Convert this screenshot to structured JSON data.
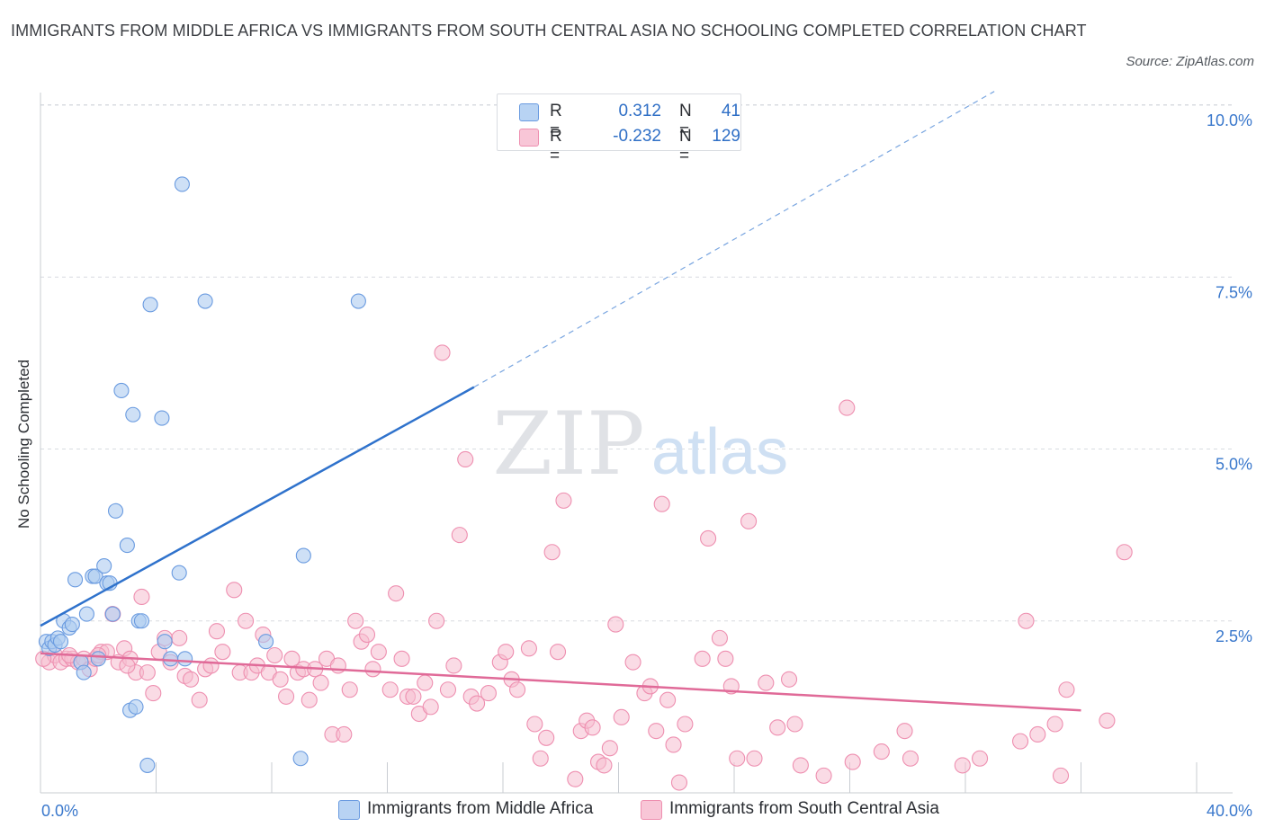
{
  "title": "IMMIGRANTS FROM MIDDLE AFRICA VS IMMIGRANTS FROM SOUTH CENTRAL ASIA NO SCHOOLING COMPLETED CORRELATION CHART",
  "source": "Source: ZipAtlas.com",
  "watermark": {
    "zip": "ZIP",
    "atlas": "atlas"
  },
  "legend": {
    "rows": [
      {
        "r_label": "R =",
        "r_value": "0.312",
        "n_label": "N =",
        "n_value": "41"
      },
      {
        "r_label": "R =",
        "r_value": "-0.232",
        "n_label": "N =",
        "n_value": "129"
      }
    ]
  },
  "colors": {
    "blue_fill": "#aecbf0",
    "blue_stroke": "#6a9be0",
    "blue_line": "#2f72cc",
    "pink_fill": "#f6bdd0",
    "pink_stroke": "#ee8fb0",
    "pink_line": "#e06a98",
    "axis_text": "#3a78cc",
    "grid": "#d8dbe0"
  },
  "chart_data": {
    "type": "scatter",
    "title": "IMMIGRANTS FROM MIDDLE AFRICA VS IMMIGRANTS FROM SOUTH CENTRAL ASIA NO SCHOOLING COMPLETED CORRELATION CHART",
    "xlabel": "",
    "ylabel": "No Schooling Completed",
    "xlim": [
      0,
      40
    ],
    "ylim": [
      0,
      10
    ],
    "x_tick_labels": [
      "0.0%",
      "40.0%"
    ],
    "y_ticks": [
      2.5,
      5.0,
      7.5,
      10.0
    ],
    "y_tick_labels": [
      "2.5%",
      "5.0%",
      "7.5%",
      "10.0%"
    ],
    "grid": true,
    "legend_position": "top-center",
    "series": [
      {
        "name": "Immigrants from Middle Africa",
        "color": "#6a9be0",
        "r": 0.312,
        "n": 41,
        "trend": {
          "x0": 0,
          "y0": 2.43,
          "x1": 15,
          "y1": 5.9,
          "dashed_to_x": 33,
          "dashed_to_y": 10.2
        },
        "points": [
          [
            0.2,
            2.2
          ],
          [
            0.3,
            2.1
          ],
          [
            0.4,
            2.2
          ],
          [
            0.5,
            2.15
          ],
          [
            0.6,
            2.25
          ],
          [
            0.7,
            2.2
          ],
          [
            0.8,
            2.5
          ],
          [
            1.0,
            2.4
          ],
          [
            1.1,
            2.45
          ],
          [
            1.2,
            3.1
          ],
          [
            1.4,
            1.9
          ],
          [
            1.5,
            1.75
          ],
          [
            1.6,
            2.6
          ],
          [
            1.8,
            3.15
          ],
          [
            1.9,
            3.15
          ],
          [
            2.0,
            1.95
          ],
          [
            2.2,
            3.3
          ],
          [
            2.3,
            3.05
          ],
          [
            2.4,
            3.05
          ],
          [
            2.5,
            2.6
          ],
          [
            2.6,
            4.1
          ],
          [
            2.8,
            5.85
          ],
          [
            3.0,
            3.6
          ],
          [
            3.2,
            5.5
          ],
          [
            3.4,
            2.5
          ],
          [
            3.5,
            2.5
          ],
          [
            3.7,
            0.4
          ],
          [
            3.8,
            7.1
          ],
          [
            4.2,
            5.45
          ],
          [
            4.3,
            2.2
          ],
          [
            4.5,
            1.95
          ],
          [
            4.8,
            3.2
          ],
          [
            4.9,
            8.85
          ],
          [
            5.0,
            1.95
          ],
          [
            5.7,
            7.15
          ],
          [
            7.8,
            2.2
          ],
          [
            9.0,
            0.5
          ],
          [
            9.1,
            3.45
          ],
          [
            11.0,
            7.15
          ],
          [
            3.1,
            1.2
          ],
          [
            3.3,
            1.25
          ]
        ]
      },
      {
        "name": "Immigrants from South Central Asia",
        "color": "#ee8fb0",
        "r": -0.232,
        "n": 129,
        "trend": {
          "x0": 0,
          "y0": 2.03,
          "x1": 36,
          "y1": 1.2
        },
        "points": [
          [
            0.3,
            1.9
          ],
          [
            0.5,
            2.0
          ],
          [
            0.7,
            1.9
          ],
          [
            0.9,
            1.95
          ],
          [
            1.1,
            1.95
          ],
          [
            1.3,
            1.9
          ],
          [
            1.5,
            1.95
          ],
          [
            1.7,
            1.8
          ],
          [
            1.9,
            1.95
          ],
          [
            2.1,
            2.05
          ],
          [
            2.3,
            2.05
          ],
          [
            2.5,
            2.6
          ],
          [
            2.7,
            1.9
          ],
          [
            2.9,
            2.1
          ],
          [
            3.1,
            1.95
          ],
          [
            3.3,
            1.75
          ],
          [
            3.5,
            2.85
          ],
          [
            3.7,
            1.75
          ],
          [
            3.9,
            1.45
          ],
          [
            4.1,
            2.05
          ],
          [
            4.3,
            2.25
          ],
          [
            4.5,
            1.9
          ],
          [
            4.8,
            2.25
          ],
          [
            5.0,
            1.7
          ],
          [
            5.2,
            1.65
          ],
          [
            5.5,
            1.35
          ],
          [
            5.7,
            1.8
          ],
          [
            5.9,
            1.85
          ],
          [
            6.1,
            2.35
          ],
          [
            6.3,
            2.05
          ],
          [
            6.7,
            2.95
          ],
          [
            6.9,
            1.75
          ],
          [
            7.1,
            2.5
          ],
          [
            7.3,
            1.75
          ],
          [
            7.5,
            1.85
          ],
          [
            7.7,
            2.3
          ],
          [
            7.9,
            1.75
          ],
          [
            8.1,
            2.0
          ],
          [
            8.3,
            1.65
          ],
          [
            8.5,
            1.4
          ],
          [
            8.7,
            1.95
          ],
          [
            8.9,
            1.75
          ],
          [
            9.1,
            1.8
          ],
          [
            9.3,
            1.35
          ],
          [
            9.5,
            1.8
          ],
          [
            9.7,
            1.6
          ],
          [
            9.9,
            1.95
          ],
          [
            10.1,
            0.85
          ],
          [
            10.3,
            1.85
          ],
          [
            10.5,
            0.85
          ],
          [
            10.7,
            1.5
          ],
          [
            10.9,
            2.5
          ],
          [
            11.1,
            2.2
          ],
          [
            11.3,
            2.3
          ],
          [
            11.5,
            1.8
          ],
          [
            11.7,
            2.05
          ],
          [
            12.1,
            1.5
          ],
          [
            12.3,
            2.9
          ],
          [
            12.5,
            1.95
          ],
          [
            12.7,
            1.4
          ],
          [
            12.9,
            1.4
          ],
          [
            13.1,
            1.15
          ],
          [
            13.3,
            1.6
          ],
          [
            13.5,
            1.25
          ],
          [
            13.7,
            2.5
          ],
          [
            13.9,
            6.4
          ],
          [
            14.1,
            1.5
          ],
          [
            14.3,
            1.85
          ],
          [
            14.5,
            3.75
          ],
          [
            14.7,
            4.85
          ],
          [
            14.9,
            1.4
          ],
          [
            15.1,
            1.3
          ],
          [
            15.5,
            1.45
          ],
          [
            15.9,
            1.9
          ],
          [
            16.1,
            2.05
          ],
          [
            16.3,
            1.65
          ],
          [
            16.5,
            1.5
          ],
          [
            16.9,
            2.1
          ],
          [
            17.1,
            1.0
          ],
          [
            17.3,
            0.5
          ],
          [
            17.5,
            0.8
          ],
          [
            17.7,
            3.5
          ],
          [
            17.9,
            2.05
          ],
          [
            18.1,
            4.25
          ],
          [
            18.5,
            0.2
          ],
          [
            18.7,
            0.9
          ],
          [
            18.9,
            1.05
          ],
          [
            19.1,
            0.95
          ],
          [
            19.3,
            0.45
          ],
          [
            19.5,
            0.4
          ],
          [
            19.7,
            0.65
          ],
          [
            19.9,
            2.45
          ],
          [
            20.1,
            1.1
          ],
          [
            20.5,
            1.9
          ],
          [
            20.9,
            1.45
          ],
          [
            21.1,
            1.55
          ],
          [
            21.3,
            0.9
          ],
          [
            21.5,
            4.2
          ],
          [
            21.7,
            1.35
          ],
          [
            21.9,
            0.7
          ],
          [
            22.1,
            0.15
          ],
          [
            22.3,
            1.0
          ],
          [
            22.9,
            1.95
          ],
          [
            23.1,
            3.7
          ],
          [
            23.5,
            2.25
          ],
          [
            23.7,
            1.95
          ],
          [
            23.9,
            1.55
          ],
          [
            24.1,
            0.5
          ],
          [
            24.5,
            3.95
          ],
          [
            24.7,
            0.5
          ],
          [
            25.1,
            1.6
          ],
          [
            25.5,
            0.95
          ],
          [
            25.9,
            1.65
          ],
          [
            26.1,
            1.0
          ],
          [
            26.3,
            0.4
          ],
          [
            27.1,
            0.25
          ],
          [
            27.9,
            5.6
          ],
          [
            28.1,
            0.45
          ],
          [
            29.1,
            0.6
          ],
          [
            29.9,
            0.9
          ],
          [
            30.1,
            0.5
          ],
          [
            31.9,
            0.4
          ],
          [
            32.5,
            0.5
          ],
          [
            33.9,
            0.75
          ],
          [
            34.1,
            2.5
          ],
          [
            34.5,
            0.85
          ],
          [
            35.1,
            1.0
          ],
          [
            35.3,
            0.25
          ],
          [
            35.5,
            1.5
          ],
          [
            36.9,
            1.05
          ],
          [
            37.5,
            3.5
          ],
          [
            1.0,
            2.0
          ],
          [
            0.1,
            1.95
          ],
          [
            2.0,
            2.0
          ],
          [
            3.0,
            1.85
          ]
        ]
      }
    ]
  },
  "bottom_legend": {
    "items": [
      {
        "label": "Immigrants from Middle Africa"
      },
      {
        "label": "Immigrants from South Central Asia"
      }
    ]
  }
}
